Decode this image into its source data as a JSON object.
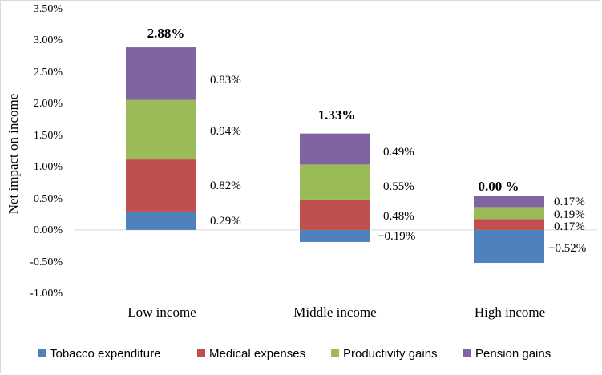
{
  "chart_data": {
    "type": "bar",
    "stacked": true,
    "title": "",
    "xlabel": "",
    "ylabel": "Net impact on income",
    "ylim": [
      -1.0,
      3.5
    ],
    "yticks": [
      "3.50%",
      "3.00%",
      "2.50%",
      "2.00%",
      "1.50%",
      "1.00%",
      "0.50%",
      "0.00%",
      "-0.50%",
      "-1.00%"
    ],
    "categories": [
      "Low income",
      "Middle income",
      "High income"
    ],
    "series": [
      {
        "name": "Tobacco expenditure",
        "color": "#4f81bd",
        "values": [
          0.29,
          -0.19,
          -0.52
        ],
        "labels": [
          "0.29%",
          "−0.19%",
          "−0.52%"
        ]
      },
      {
        "name": "Medical expenses",
        "color": "#c0504d",
        "values": [
          0.82,
          0.48,
          0.17
        ],
        "labels": [
          "0.82%",
          "0.48%",
          "0.17%"
        ]
      },
      {
        "name": "Productivity gains",
        "color": "#9bbb59",
        "values": [
          0.94,
          0.55,
          0.19
        ],
        "labels": [
          "0.94%",
          "0.55%",
          "0.19%"
        ]
      },
      {
        "name": "Pension gains",
        "color": "#8064a2",
        "values": [
          0.83,
          0.49,
          0.17
        ],
        "labels": [
          "0.83%",
          "0.49%",
          "0.17%"
        ]
      }
    ],
    "totals": [
      "2.88%",
      "1.33%",
      "0.00 %"
    ],
    "legend": "bottom"
  }
}
